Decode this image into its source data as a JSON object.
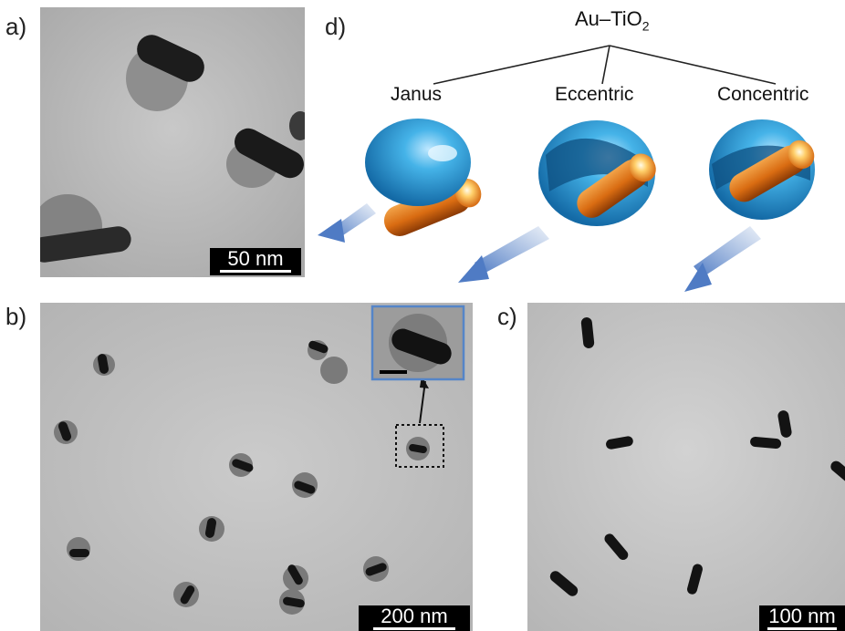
{
  "labels": {
    "a": "a)",
    "b": "b)",
    "c": "c)",
    "d": "d)"
  },
  "scale_bars": {
    "a": "50 nm",
    "b": "200 nm",
    "c": "100 nm"
  },
  "schematic": {
    "title_main": "Au–TiO",
    "title_sub": "2",
    "types": [
      "Janus",
      "Eccentric",
      "Concentric"
    ]
  },
  "colors": {
    "shell": "#3aa6de",
    "rod": "#e0781a",
    "arrow": "#6f95cf",
    "inset_border": "#5585c8"
  }
}
